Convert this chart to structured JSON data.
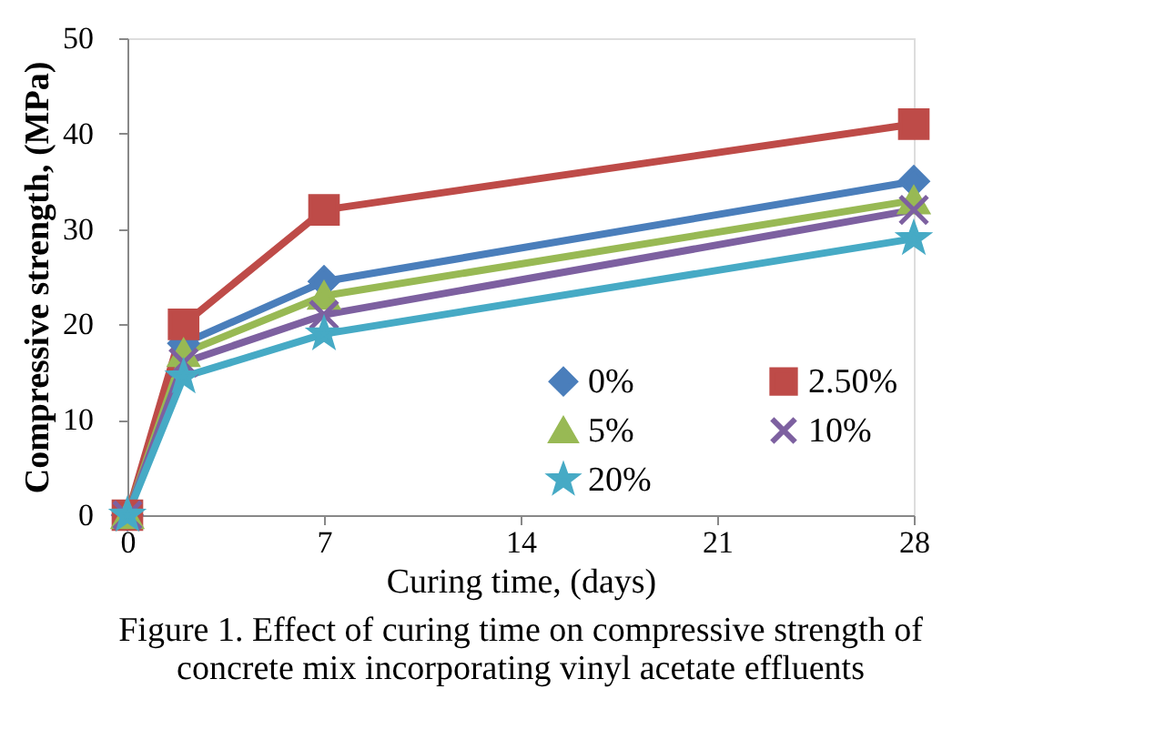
{
  "chart_data": {
    "type": "line",
    "xlabel": "Curing time, (days)",
    "ylabel": "Compressive strength, (MPa)",
    "x": [
      0,
      2,
      7,
      28
    ],
    "series": [
      {
        "name": "0%",
        "color": "#4a7ebb",
        "marker": "diamond",
        "values": [
          0,
          18,
          24.5,
          35
        ]
      },
      {
        "name": "2.50%",
        "color": "#be4b48",
        "marker": "square",
        "values": [
          0,
          20,
          32,
          41
        ]
      },
      {
        "name": "5%",
        "color": "#98b954",
        "marker": "triangle",
        "values": [
          0,
          17,
          23,
          33
        ]
      },
      {
        "name": "10%",
        "color": "#7d60a0",
        "marker": "cross",
        "values": [
          0,
          16,
          21,
          32
        ]
      },
      {
        "name": "20%",
        "color": "#46aac5",
        "marker": "star",
        "values": [
          0,
          14.5,
          19,
          29
        ]
      }
    ],
    "xlim": [
      0,
      28
    ],
    "xticks": [
      0,
      7,
      14,
      21,
      28
    ],
    "ylim": [
      0,
      50
    ],
    "yticks": [
      0,
      10,
      20,
      30,
      40,
      50
    ],
    "grid": false,
    "legend": "bottom right",
    "line_style": "solid",
    "annotations": [
      "Figure 1. Effect of curing time on compressive strength of concrete mix incorporating vinyl acetate effluents"
    ]
  }
}
